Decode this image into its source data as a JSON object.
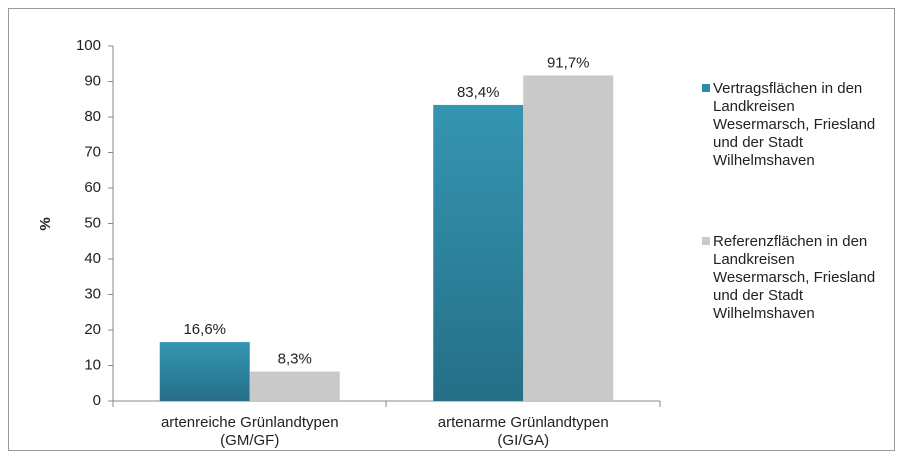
{
  "chart_data": {
    "type": "bar",
    "y_label": "%",
    "categories": [
      "artenreiche Grünlandtypen (GM/GF)",
      "artenarme Grünlandtypen (GI/GA)"
    ],
    "series": [
      {
        "name": "Vertragsflächen in den Landkreisen Wesermarsch, Friesland und der Stadt Wilhelmshaven",
        "color": "#2f8aa5",
        "values": [
          16.6,
          83.4
        ],
        "value_labels": [
          "16,6%",
          "83,4%"
        ]
      },
      {
        "name": "Referenzflächen in den Landkreisen Wesermarsch, Friesland und der Stadt Wilhelmshaven",
        "color": "#c9c9c9",
        "values": [
          8.3,
          91.7
        ],
        "value_labels": [
          "8,3%",
          "91,7%"
        ]
      }
    ],
    "ylim": [
      0,
      100
    ],
    "yticks": [
      0,
      10,
      20,
      30,
      40,
      50,
      60,
      70,
      80,
      90,
      100
    ],
    "grid": false,
    "legend": "right"
  }
}
